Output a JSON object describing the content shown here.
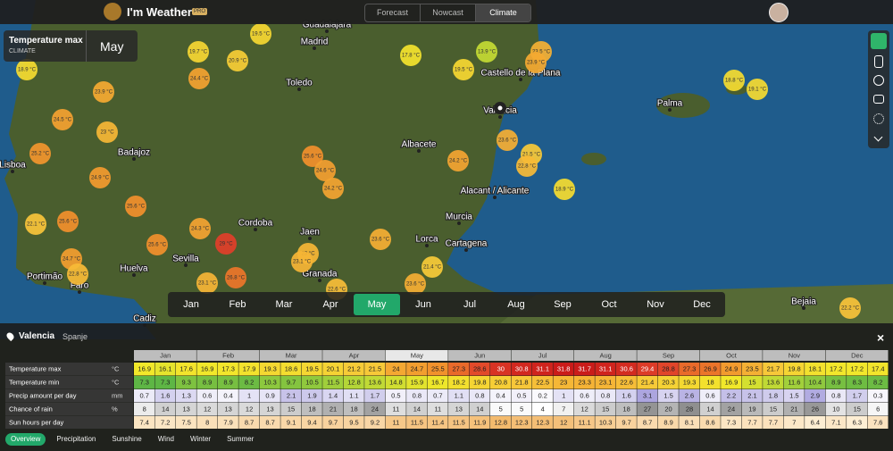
{
  "header": {
    "app_name": "I'm Weather",
    "badge": "PRO",
    "tabs": [
      "Forecast",
      "Nowcast",
      "Climate"
    ],
    "active_tab": 2
  },
  "layer_panel": {
    "title": "Temperature max",
    "subtitle": "CLIMATE",
    "month": "May"
  },
  "map": {
    "places": [
      "Guadalajara",
      "Madrid",
      "Toledo",
      "Castello de la Plana",
      "Valencia",
      "Palma",
      "Badajoz",
      "Albacete",
      "Lisboa",
      "Alacant / Alicante",
      "Cordoba",
      "Jaen",
      "Murcia",
      "Sevilla",
      "Lorca",
      "Cartagena",
      "Huelva",
      "Granada",
      "Portimão",
      "Faro",
      "Cadiz",
      "Bejaia"
    ],
    "bubbles": [
      "19.5 °C",
      "19.7 °C",
      "20.9 °C",
      "18.9 °C",
      "24.4 °C",
      "23.9 °C",
      "17.8 °C",
      "19.5 °C",
      "13.9 °C",
      "23.5 °C",
      "23.9 °C",
      "18.8 °C",
      "19.1 °C",
      "24.5 °C",
      "23 °C",
      "25.6 °C",
      "24.6 °C",
      "24.2 °C",
      "23.6 °C",
      "21.5 °C",
      "22.8 °C",
      "24.2 °C",
      "25.2 °C",
      "24.9 °C",
      "18.9 °C",
      "25.6 °C",
      "25.6 °C",
      "22.1 °C",
      "24.3 °C",
      "29 °C",
      "25.6 °C",
      "23.6 °C",
      "23 °C",
      "23.1 °C",
      "21.4 °C",
      "24.7 °C",
      "22.8 °C",
      "23.1 °C",
      "26.8 °C",
      "22.6 °C",
      "23.6 °C",
      "22.2 °C"
    ]
  },
  "month_bar": {
    "months": [
      "Jan",
      "Feb",
      "Mar",
      "Apr",
      "May",
      "Jun",
      "Jul",
      "Aug",
      "Sep",
      "Oct",
      "Nov",
      "Dec"
    ],
    "selected": 4
  },
  "detail": {
    "location": "Valencia",
    "country": "Spanje",
    "months": [
      "Jan",
      "Feb",
      "Mar",
      "Apr",
      "May",
      "Jun",
      "Jul",
      "Aug",
      "Sep",
      "Oct",
      "Nov",
      "Dec"
    ],
    "rows": [
      {
        "label": "Temperature max",
        "unit": "°C",
        "values": [
          16.9,
          16.1,
          17.6,
          16.9,
          17.3,
          17.9,
          19.3,
          18.6,
          19.5,
          20.1,
          21.2,
          21.5,
          24,
          24.7,
          25.5,
          27.3,
          28.6,
          30,
          30.8,
          31.1,
          31.8,
          31.7,
          31.1,
          30.6,
          29.4,
          28.8,
          27.3,
          26.9,
          24.9,
          23.5,
          21.7,
          19.8,
          18.1,
          17.2,
          17.2,
          17.4
        ]
      },
      {
        "label": "Temperature min",
        "unit": "°C",
        "values": [
          7.3,
          7.3,
          9.3,
          8.9,
          8.9,
          8.2,
          10.3,
          9.7,
          10.5,
          11.5,
          12.8,
          13.6,
          14.8,
          15.9,
          16.7,
          18.2,
          19.8,
          20.8,
          21.8,
          22.5,
          23,
          23.3,
          23.1,
          22.6,
          21.4,
          20.3,
          19.3,
          18,
          16.9,
          15,
          13.6,
          11.6,
          10.4,
          8.9,
          8.3,
          8.2
        ]
      },
      {
        "label": "Precip amount per day",
        "unit": "mm",
        "values": [
          0.7,
          1.6,
          1.3,
          0.6,
          0.4,
          1,
          0.9,
          2.1,
          1.9,
          1.4,
          1.1,
          1.7,
          0.5,
          0.8,
          0.7,
          1.1,
          0.8,
          0.4,
          0.5,
          0.2,
          1,
          0.6,
          0.8,
          1.6,
          3.1,
          1.5,
          2.6,
          0.6,
          2.2,
          2.1,
          1.8,
          1.5,
          2.9,
          0.8,
          1.7,
          0.3
        ]
      },
      {
        "label": "Chance of rain",
        "unit": "%",
        "values": [
          8,
          14,
          13,
          12,
          13,
          12,
          13,
          15,
          18,
          21,
          18,
          24,
          11,
          14,
          11,
          13,
          14,
          5,
          5,
          4,
          7,
          12,
          15,
          18,
          27,
          20,
          28,
          14,
          24,
          19,
          15,
          21,
          26,
          10,
          15,
          6
        ]
      },
      {
        "label": "Sun hours per day",
        "values": [
          7.4,
          7.2,
          7.5,
          8,
          7.9,
          8.7,
          8.7,
          9.1,
          9.4,
          9.7,
          9.5,
          9.2,
          11,
          11.5,
          11.4,
          11.5,
          11.9,
          12.8,
          12.3,
          12.3,
          12,
          11.1,
          10.3,
          9.7,
          8.7,
          8.9,
          8.1,
          8.6,
          7.3,
          7.7,
          7.7,
          7,
          6.4,
          7.1,
          6.3,
          7.6
        ]
      }
    ]
  },
  "bottom_tabs": {
    "items": [
      "Overview",
      "Precipitation",
      "Sunshine",
      "Wind",
      "Winter",
      "Summer"
    ],
    "active": 0
  }
}
